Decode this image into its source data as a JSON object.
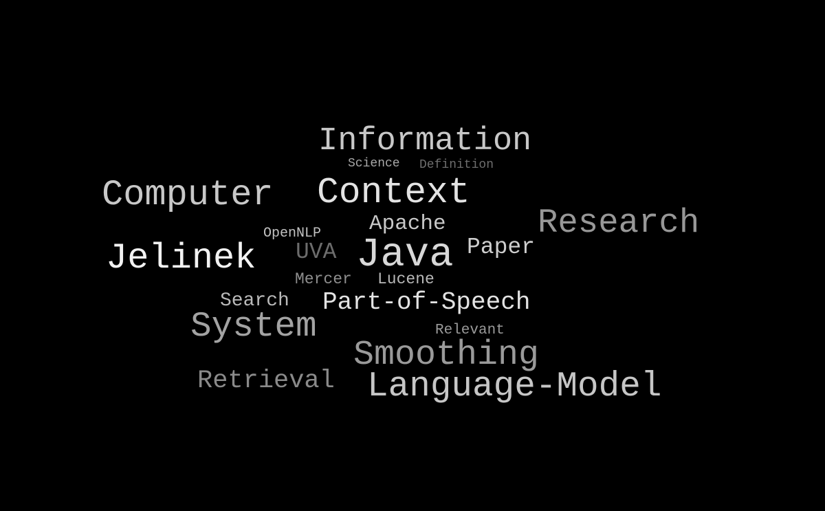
{
  "background": "#000000",
  "words": {
    "information": "Information",
    "science": "Science",
    "definition": "Definition",
    "computer": "Computer",
    "context": "Context",
    "apache": "Apache",
    "research": "Research",
    "opennlp": "OpenNLP",
    "jelinek": "Jelinek",
    "uva": "UVA",
    "java": "Java",
    "paper": "Paper",
    "mercer": "Mercer",
    "lucene": "Lucene",
    "search": "Search",
    "part_of_speech": "Part-of-Speech",
    "system": "System",
    "relevant": "Relevant",
    "smoothing": "Smoothing",
    "retrieval": "Retrieval",
    "language_model": "Language-Model"
  }
}
